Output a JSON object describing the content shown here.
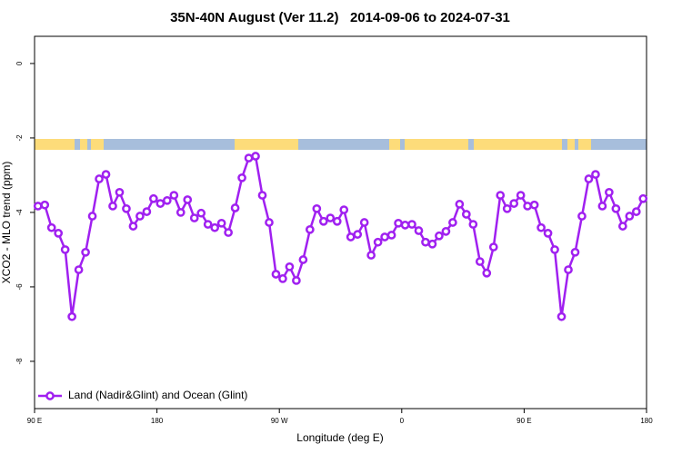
{
  "chart_data": {
    "type": "line",
    "title": "35N-40N August (Ver 11.2)   2014-09-06 to 2024-07-31",
    "x_label": "Longitude (deg E)",
    "y_label": "XCO2 - MLO trend (ppm)",
    "x": [
      92.5,
      97.5,
      102.5,
      107.5,
      112.5,
      117.5,
      122.5,
      127.5,
      132.5,
      137.5,
      142.5,
      147.5,
      152.5,
      157.5,
      162.5,
      167.5,
      172.5,
      177.5,
      182.5,
      187.5,
      192.5,
      197.5,
      202.5,
      207.5,
      212.5,
      217.5,
      222.5,
      227.5,
      232.5,
      237.5,
      242.5,
      247.5,
      252.5,
      257.5,
      262.5,
      267.5,
      272.5,
      277.5,
      282.5,
      287.5,
      292.5,
      297.5,
      302.5,
      307.5,
      312.5,
      317.5,
      322.5,
      327.5,
      332.5,
      337.5,
      342.5,
      347.5,
      352.5,
      357.5,
      362.5,
      367.5,
      372.5,
      377.5,
      382.5,
      387.5,
      392.5,
      397.5,
      402.5,
      407.5,
      412.5,
      417.5,
      422.5,
      427.5,
      432.5,
      437.5,
      442.5,
      447.5,
      452.5,
      457.5,
      462.5,
      467.5,
      472.5,
      477.5,
      482.5,
      487.5,
      492.5,
      497.5,
      502.5,
      507.5,
      512.5,
      517.5,
      522.5,
      527.5,
      532.5,
      537.5
    ],
    "series": [
      {
        "name": "Land (Nadir&Glint) and Ocean (Glint)",
        "color": "#a020f0",
        "values": [
          -3.83,
          -3.8,
          -4.41,
          -4.56,
          -5.0,
          -6.8,
          -5.54,
          -5.07,
          -4.1,
          -3.1,
          -2.98,
          -3.83,
          -3.46,
          -3.9,
          -4.37,
          -4.1,
          -3.98,
          -3.63,
          -3.76,
          -3.68,
          -3.54,
          -4.0,
          -3.66,
          -4.15,
          -4.02,
          -4.32,
          -4.41,
          -4.29,
          -4.54,
          -3.88,
          -3.07,
          -2.54,
          -2.49,
          -3.54,
          -4.27,
          -5.66,
          -5.78,
          -5.46,
          -5.83,
          -5.27,
          -4.46,
          -3.9,
          -4.24,
          -4.15,
          -4.24,
          -3.93,
          -4.66,
          -4.59,
          -4.27,
          -5.15,
          -4.8,
          -4.66,
          -4.61,
          -4.29,
          -4.34,
          -4.32,
          -4.49,
          -4.8,
          -4.85,
          -4.63,
          -4.51,
          -4.27,
          -3.78,
          -4.05,
          -4.32,
          -5.32,
          -5.63,
          -4.93,
          -3.54,
          -3.9,
          -3.76,
          -3.54,
          -3.83,
          -3.8,
          -4.41,
          -4.56,
          -5.0,
          -6.8,
          -5.54,
          -5.07,
          -4.1,
          -3.1,
          -2.98,
          -3.83,
          -3.46,
          -3.9,
          -4.37,
          -4.1,
          -3.98,
          -3.63
        ]
      }
    ],
    "xlim": [
      90,
      540
    ],
    "xticks": [
      {
        "value": 90,
        "label": "90 E"
      },
      180,
      {
        "value": 270,
        "label": "90 W"
      },
      {
        "value": 360,
        "label": "0"
      },
      {
        "value": 450,
        "label": "90 E"
      },
      {
        "value": 540,
        "label": "180"
      }
    ],
    "ylim": [
      -9.27,
      0.73
    ],
    "yticks": [
      0,
      -2,
      -4,
      -6,
      -8
    ],
    "legend": "bottom-left"
  }
}
